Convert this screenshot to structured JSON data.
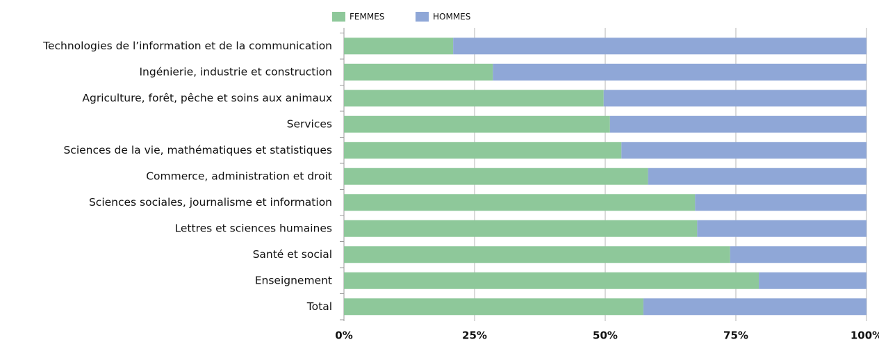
{
  "chart_data": {
    "type": "stacked-barh",
    "categories": [
      "Technologies de l’information et de la communication",
      "Ingénierie, industrie et construction",
      "Agriculture, forêt, pêche et soins aux animaux",
      "Services",
      "Sciences de la vie, mathématiques et statistiques",
      "Commerce, administration et droit",
      "Sciences sociales, journalisme et information",
      "Lettres et sciences humaines",
      "Santé et social",
      "Enseignement",
      "Total"
    ],
    "series": [
      {
        "name": "FEMMES",
        "color": "#8ec89a",
        "values": [
          20.9,
          28.5,
          49.7,
          50.9,
          53.1,
          58.2,
          67.2,
          67.6,
          73.9,
          79.4,
          57.3
        ]
      },
      {
        "name": "HOMMES",
        "color": "#8fa7d7",
        "values": [
          79.1,
          71.5,
          50.3,
          49.1,
          46.9,
          41.8,
          32.8,
          32.4,
          26.1,
          20.6,
          42.7
        ]
      }
    ],
    "xlim": [
      0,
      100
    ],
    "xticks": [
      {
        "value": 0,
        "label": "0%"
      },
      {
        "value": 25,
        "label": "25%"
      },
      {
        "value": 50,
        "label": "50%"
      },
      {
        "value": 75,
        "label": "75%"
      },
      {
        "value": 100,
        "label": "100%"
      }
    ],
    "grid": true,
    "legend": "top"
  }
}
